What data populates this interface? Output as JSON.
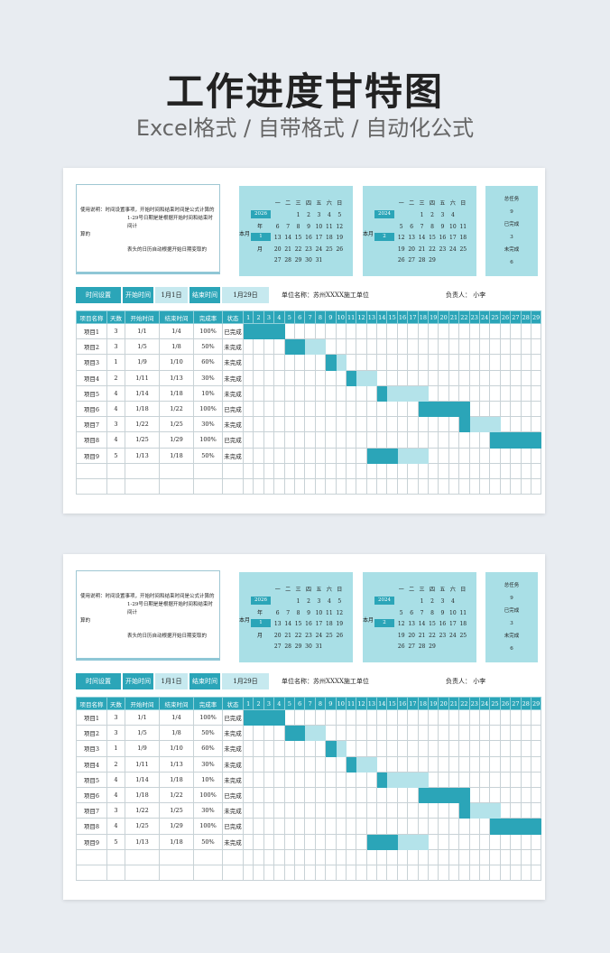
{
  "hero": {
    "title": "工作进度甘特图",
    "subtitle": "Excel格式 / 自带格式 / 自动化公式"
  },
  "colors": {
    "accent": "#2ba5b8",
    "light": "#a9dfe6",
    "pale": "#b4e3ea"
  },
  "notes": {
    "line1": "使用说明：时间设置事项，开始时间和结束时间是公式计算的",
    "line2": "1-29号日期是是根据开始时间和结束时间计",
    "line3": "算的",
    "line4": "表头的日历自动根据开始日期变取的"
  },
  "calendar1": {
    "dow": [
      "一",
      "二",
      "三",
      "四",
      "五",
      "六",
      "日"
    ],
    "year": "2026",
    "nian": "年",
    "benyue": "本月",
    "month": "1",
    "yue": "月",
    "days": [
      "",
      "",
      "1",
      "2",
      "3",
      "4",
      "5",
      "6",
      "7",
      "8",
      "9",
      "10",
      "11",
      "12",
      "13",
      "14",
      "15",
      "16",
      "17",
      "18",
      "19",
      "20",
      "21",
      "22",
      "23",
      "24",
      "25",
      "26",
      "27",
      "28",
      "29",
      "30",
      "31",
      "",
      ""
    ]
  },
  "calendar2": {
    "dow": [
      "一",
      "二",
      "三",
      "四",
      "五",
      "六",
      "日"
    ],
    "year": "2024",
    "benyue": "本月",
    "month": "2",
    "days": [
      "",
      "",
      "1",
      "2",
      "3",
      "4",
      "",
      "5",
      "6",
      "7",
      "8",
      "9",
      "10",
      "11",
      "12",
      "13",
      "14",
      "15",
      "16",
      "17",
      "18",
      "19",
      "20",
      "21",
      "22",
      "23",
      "24",
      "25",
      "26",
      "27",
      "28",
      "29",
      "",
      "",
      ""
    ]
  },
  "stats": {
    "total_label": "总任务",
    "total": "9",
    "done_label": "已完成",
    "done": "3",
    "todo_label": "未完成",
    "todo": "6"
  },
  "topbar": {
    "time_setting": "时间设置",
    "start_label": "开始时间",
    "start_value": "1月1日",
    "end_label": "结束时间",
    "end_value": "1月29日",
    "unit": "单位名称：苏州XXXX施工单位",
    "owner": "负责人：  小李"
  },
  "table": {
    "headers": [
      "项目名称",
      "天数",
      "开始时间",
      "结束时间",
      "完成率",
      "状态"
    ],
    "day_headers": [
      "1",
      "2",
      "3",
      "4",
      "5",
      "6",
      "7",
      "8",
      "9",
      "10",
      "11",
      "12",
      "13",
      "14",
      "15",
      "16",
      "17",
      "18",
      "19",
      "20",
      "21",
      "22",
      "23",
      "24",
      "25",
      "26",
      "27",
      "28",
      "29"
    ],
    "rows": [
      {
        "name": "项目1",
        "days": "3",
        "start": "1/1",
        "end": "1/4",
        "rate": "100%",
        "status": "已完成",
        "s": 1,
        "e": 4,
        "done": true
      },
      {
        "name": "项目2",
        "days": "3",
        "start": "1/5",
        "end": "1/8",
        "rate": "50%",
        "status": "未完成",
        "s": 5,
        "e": 8,
        "done": false
      },
      {
        "name": "项目3",
        "days": "1",
        "start": "1/9",
        "end": "1/10",
        "rate": "60%",
        "status": "未完成",
        "s": 9,
        "e": 10,
        "done": false
      },
      {
        "name": "项目4",
        "days": "2",
        "start": "1/11",
        "end": "1/13",
        "rate": "30%",
        "status": "未完成",
        "s": 11,
        "e": 13,
        "done": false
      },
      {
        "name": "项目5",
        "days": "4",
        "start": "1/14",
        "end": "1/18",
        "rate": "10%",
        "status": "未完成",
        "s": 14,
        "e": 18,
        "done": false
      },
      {
        "name": "项目6",
        "days": "4",
        "start": "1/18",
        "end": "1/22",
        "rate": "100%",
        "status": "已完成",
        "s": 18,
        "e": 22,
        "done": true
      },
      {
        "name": "项目7",
        "days": "3",
        "start": "1/22",
        "end": "1/25",
        "rate": "30%",
        "status": "未完成",
        "s": 22,
        "e": 25,
        "done": false
      },
      {
        "name": "项目8",
        "days": "4",
        "start": "1/25",
        "end": "1/29",
        "rate": "100%",
        "status": "已完成",
        "s": 25,
        "e": 29,
        "done": true
      },
      {
        "name": "项目9",
        "days": "5",
        "start": "1/13",
        "end": "1/18",
        "rate": "50%",
        "status": "未完成",
        "s": 13,
        "e": 18,
        "done": false
      }
    ],
    "empty_rows": 2
  }
}
